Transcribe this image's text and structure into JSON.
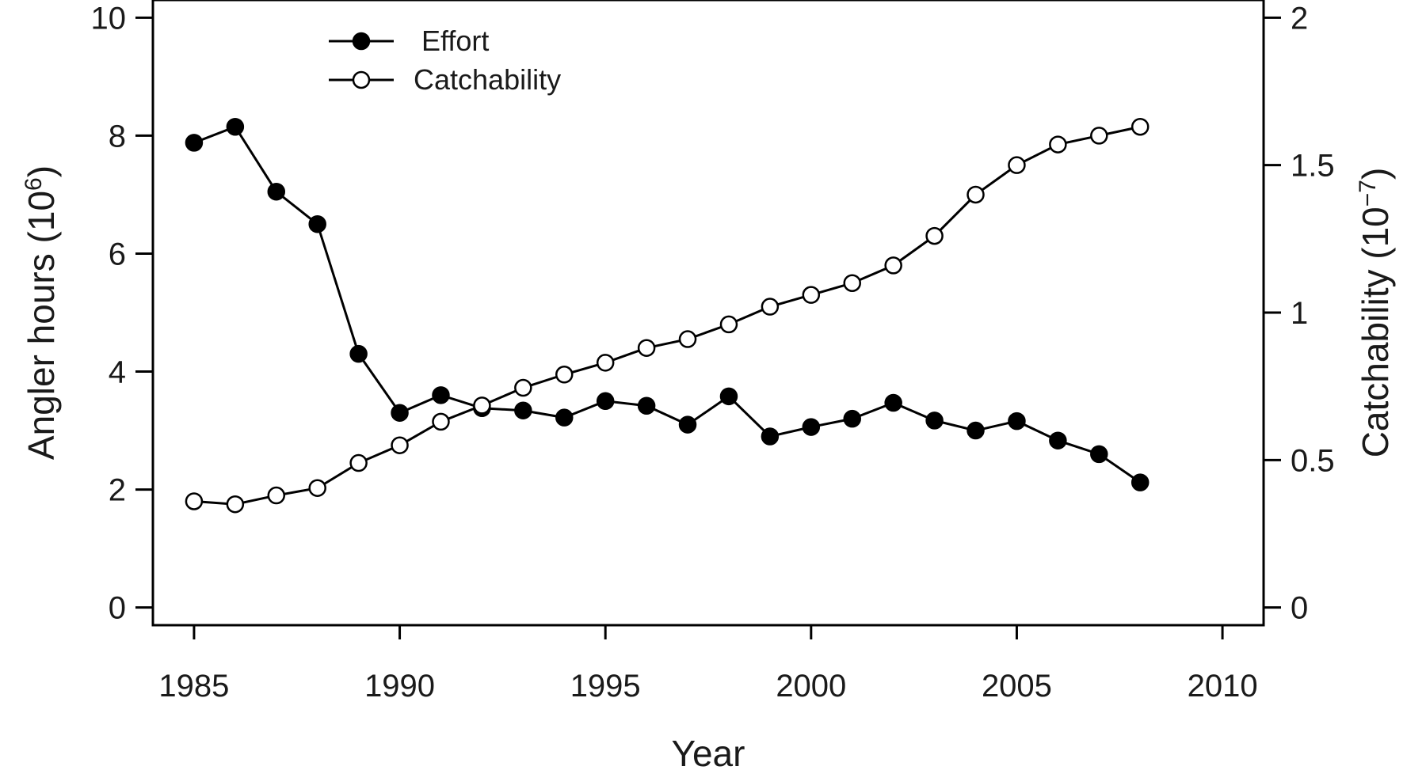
{
  "chart_data": {
    "type": "line",
    "xlabel": "Year",
    "ylabel_left": "Angler hours",
    "ylabel_left_unit_base": "10",
    "ylabel_left_unit_exp": "6",
    "ylabel_right": "Catchability",
    "ylabel_right_unit_base": "10",
    "ylabel_right_unit_exp": "−7",
    "xlim": [
      1984,
      2011
    ],
    "ylim_left": [
      -0.3,
      10.3
    ],
    "ylim_right": [
      -0.06,
      2.06
    ],
    "x_ticks": [
      1985,
      1990,
      1995,
      2000,
      2005,
      2010
    ],
    "y_left_ticks": [
      0,
      2,
      4,
      6,
      8,
      10
    ],
    "y_right_ticks": [
      0,
      0.5,
      1,
      1.5,
      2
    ],
    "y_right_tick_labels": [
      "0",
      "0.5",
      "1",
      "1.5",
      "2"
    ],
    "x": [
      1985,
      1986,
      1987,
      1988,
      1989,
      1990,
      1991,
      1992,
      1993,
      1994,
      1995,
      1996,
      1997,
      1998,
      1999,
      2000,
      2001,
      2002,
      2003,
      2004,
      2005,
      2006,
      2007,
      2008
    ],
    "series": [
      {
        "name": "Effort",
        "axis": "left",
        "marker": "filled-circle",
        "values": [
          7.88,
          8.15,
          7.05,
          6.5,
          4.3,
          3.3,
          3.6,
          3.38,
          3.34,
          3.22,
          3.5,
          3.42,
          3.1,
          3.58,
          2.9,
          3.06,
          3.2,
          3.47,
          3.17,
          3.0,
          3.16,
          2.83,
          2.6,
          2.12
        ]
      },
      {
        "name": "Catchability",
        "axis": "right",
        "marker": "open-circle",
        "values": [
          0.36,
          0.35,
          0.38,
          0.405,
          0.49,
          0.55,
          0.63,
          0.685,
          0.745,
          0.79,
          0.83,
          0.88,
          0.91,
          0.96,
          1.02,
          1.06,
          1.1,
          1.16,
          1.26,
          1.4,
          1.5,
          1.57,
          1.6,
          1.63
        ]
      }
    ],
    "legend": {
      "position": "top-left",
      "entries": [
        "Effort",
        "Catchability"
      ]
    },
    "grid": false,
    "colors": {
      "line": "#000000",
      "frame": "#000000",
      "text": "#1a1a1a",
      "background": "#ffffff"
    }
  }
}
